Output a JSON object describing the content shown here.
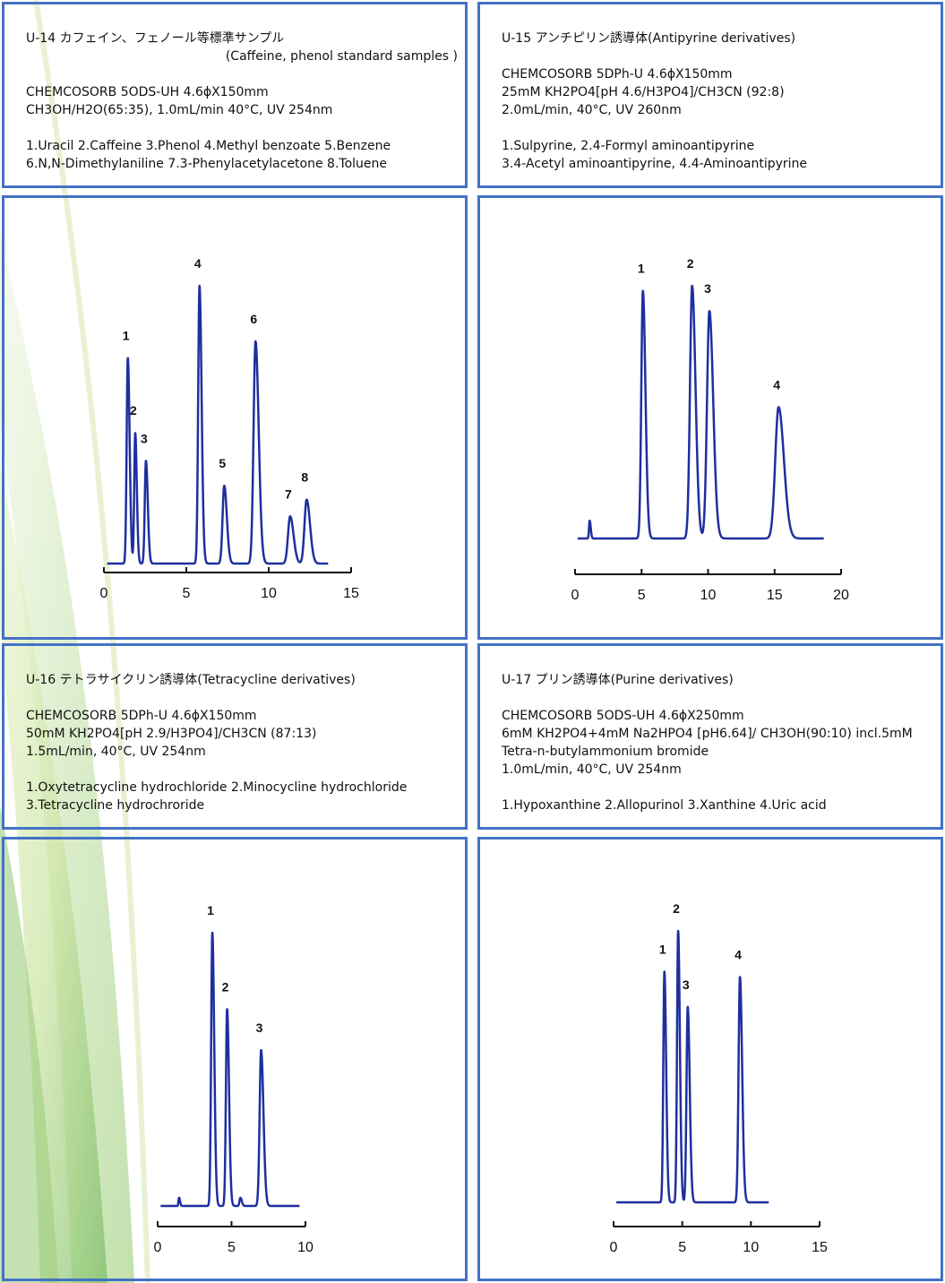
{
  "colors": {
    "border": "#4472c4",
    "trace": "#1f2f9f",
    "axis": "#111111"
  },
  "panels": [
    {
      "title": "U-14 カフェイン、フェノール等標準サンプル",
      "subtitle": "(Caffeine, phenol standard samples )",
      "conditions": [
        "CHEMCOSORB 5ODS-UH 4.6ϕX150mm",
        "CH3OH/H2O(65:35), 1.0mL/min 40°C, UV 254nm"
      ],
      "analytes": [
        "1.Uracil 2.Caffeine 3.Phenol 4.Methyl benzoate 5.Benzene",
        "6.N,N-Dimethylaniline 7.3-Phenylacetylacetone 8.Toluene"
      ]
    },
    {
      "title": "U-15 アンチピリン誘導体(Antipyrine derivatives)",
      "subtitle": "",
      "conditions": [
        "CHEMCOSORB 5DPh-U 4.6ϕX150mm",
        "25mM KH2PO4[pH 4.6/H3PO4]/CH3CN (92:8)",
        "2.0mL/min, 40°C, UV 260nm"
      ],
      "analytes": [
        "1.Sulpyrine, 2.4-Formyl aminoantipyrine",
        "3.4-Acetyl aminoantipyrine, 4.4-Aminoantipyrine"
      ]
    },
    {
      "title": "U-16 テトラサイクリン誘導体(Tetracycline derivatives)",
      "subtitle": "",
      "conditions": [
        "CHEMCOSORB 5DPh-U 4.6ϕX150mm",
        "50mM KH2PO4[pH 2.9/H3PO4]/CH3CN (87:13)",
        "1.5mL/min, 40°C, UV 254nm"
      ],
      "analytes": [
        "1.Oxytetracycline hydrochloride 2.Minocycline hydrochloride",
        "3.Tetracycline hydrochroride"
      ]
    },
    {
      "title": "U-17 プリン誘導体(Purine derivatives)",
      "subtitle": "",
      "conditions": [
        "CHEMCOSORB 5ODS-UH 4.6ϕX250mm",
        "6mM KH2PO4+4mM Na2HPO4 [pH6.64]/ CH3OH(90:10) incl.5mM",
        "Tetra-n-butylammonium bromide",
        "1.0mL/min, 40°C, UV 254nm"
      ],
      "analytes": [
        "1.Hypoxanthine 2.Allopurinol 3.Xanthine 4.Uric acid"
      ]
    }
  ],
  "chart_data": [
    {
      "type": "line",
      "id": "U-14",
      "xlim": [
        0,
        15
      ],
      "xticks": [
        0,
        5,
        10,
        15
      ],
      "baseline": 0.02,
      "end_time": 13.6,
      "peaks": [
        {
          "label": "1",
          "t": 1.45,
          "h": 0.74,
          "w": 0.07
        },
        {
          "label": "2",
          "t": 1.9,
          "h": 0.47,
          "w": 0.06
        },
        {
          "label": "3",
          "t": 2.55,
          "h": 0.37,
          "w": 0.07
        },
        {
          "label": "4",
          "t": 5.8,
          "h": 1.0,
          "w": 0.08
        },
        {
          "label": "5",
          "t": 7.3,
          "h": 0.28,
          "w": 0.1
        },
        {
          "label": "6",
          "t": 9.2,
          "h": 0.8,
          "w": 0.12
        },
        {
          "label": "7",
          "t": 11.3,
          "h": 0.17,
          "w": 0.13
        },
        {
          "label": "8",
          "t": 12.3,
          "h": 0.23,
          "w": 0.13
        }
      ]
    },
    {
      "type": "line",
      "id": "U-15",
      "xlim": [
        0,
        20
      ],
      "xticks": [
        0,
        5,
        10,
        15,
        20
      ],
      "baseline": 0.02,
      "end_time": 18.7,
      "peaks": [
        {
          "label": "",
          "t": 1.1,
          "h": 0.07,
          "w": 0.05
        },
        {
          "label": "1",
          "t": 5.1,
          "h": 0.98,
          "w": 0.12
        },
        {
          "label": "2",
          "t": 8.8,
          "h": 1.0,
          "w": 0.16
        },
        {
          "label": "3",
          "t": 10.1,
          "h": 0.9,
          "w": 0.18
        },
        {
          "label": "4",
          "t": 15.3,
          "h": 0.52,
          "w": 0.25
        }
      ]
    },
    {
      "type": "line",
      "id": "U-16",
      "xlim": [
        0,
        10
      ],
      "xticks": [
        0,
        5,
        10
      ],
      "baseline": 0.02,
      "end_time": 9.6,
      "peaks": [
        {
          "label": "",
          "t": 1.45,
          "h": 0.03,
          "w": 0.04
        },
        {
          "label": "1",
          "t": 3.7,
          "h": 1.0,
          "w": 0.08
        },
        {
          "label": "2",
          "t": 4.7,
          "h": 0.72,
          "w": 0.08
        },
        {
          "label": "",
          "t": 5.6,
          "h": 0.03,
          "w": 0.06
        },
        {
          "label": "3",
          "t": 7.0,
          "h": 0.57,
          "w": 0.1
        }
      ]
    },
    {
      "type": "line",
      "id": "U-17",
      "xlim": [
        0,
        15
      ],
      "xticks": [
        0,
        5,
        10,
        15
      ],
      "baseline": 0.02,
      "end_time": 11.3,
      "peaks": [
        {
          "label": "1",
          "t": 3.7,
          "h": 0.85,
          "w": 0.08
        },
        {
          "label": "2",
          "t": 4.7,
          "h": 1.0,
          "w": 0.08
        },
        {
          "label": "3",
          "t": 5.4,
          "h": 0.72,
          "w": 0.09
        },
        {
          "label": "4",
          "t": 9.2,
          "h": 0.83,
          "w": 0.1
        }
      ]
    }
  ]
}
